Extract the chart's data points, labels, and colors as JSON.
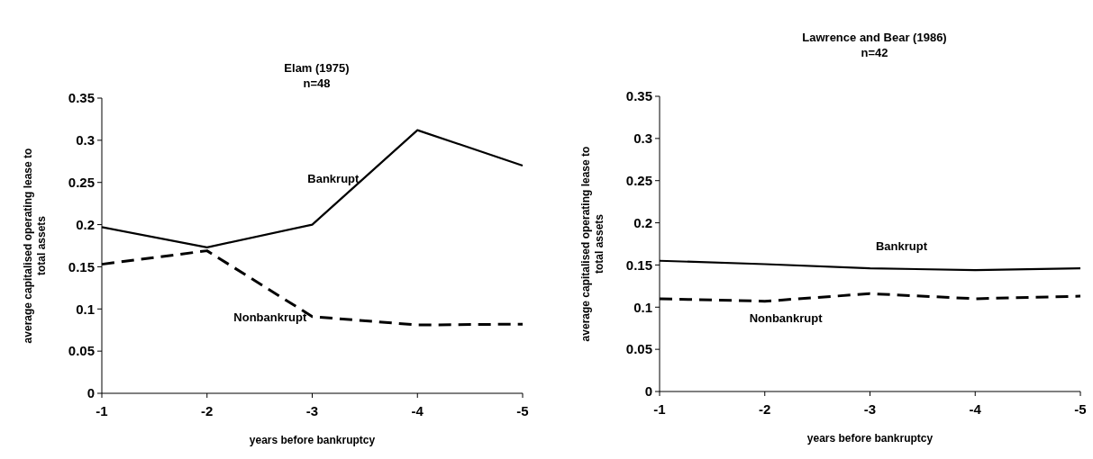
{
  "chart_data": [
    {
      "type": "line",
      "title": "Elam (1975)",
      "subtitle": "n=48",
      "xlabel": "years before bankruptcy",
      "ylabel": "average capitalised operating lease to total assets",
      "categories": [
        "-1",
        "-2",
        "-3",
        "-4",
        "-5"
      ],
      "ylim": [
        0,
        0.35
      ],
      "yticks": [
        0,
        0.05,
        0.1,
        0.15,
        0.2,
        0.25,
        0.3,
        0.35
      ],
      "grid": false,
      "legend": false,
      "marker": "none",
      "series": [
        {
          "name": "Bankrupt",
          "color": "#000000",
          "line_style": "solid",
          "values": [
            0.197,
            0.173,
            0.2,
            0.312,
            0.27
          ]
        },
        {
          "name": "Nonbankrupt",
          "color": "#000000",
          "line_style": "dashed",
          "values": [
            0.153,
            0.169,
            0.091,
            0.081,
            0.082
          ]
        }
      ]
    },
    {
      "type": "line",
      "title": "Lawrence and Bear (1986)",
      "subtitle": "n=42",
      "xlabel": "years before bankruptcy",
      "ylabel": "average capitalised operating lease to total assets",
      "categories": [
        "-1",
        "-2",
        "-3",
        "-4",
        "-5"
      ],
      "ylim": [
        0,
        0.35
      ],
      "yticks": [
        0,
        0.05,
        0.1,
        0.15,
        0.2,
        0.25,
        0.3,
        0.35
      ],
      "grid": false,
      "legend": false,
      "marker": "none",
      "series": [
        {
          "name": "Bankrupt",
          "color": "#000000",
          "line_style": "solid",
          "values": [
            0.155,
            0.151,
            0.146,
            0.144,
            0.146
          ]
        },
        {
          "name": "Nonbankrupt",
          "color": "#000000",
          "line_style": "dashed",
          "values": [
            0.11,
            0.107,
            0.116,
            0.11,
            0.113
          ]
        }
      ]
    }
  ]
}
